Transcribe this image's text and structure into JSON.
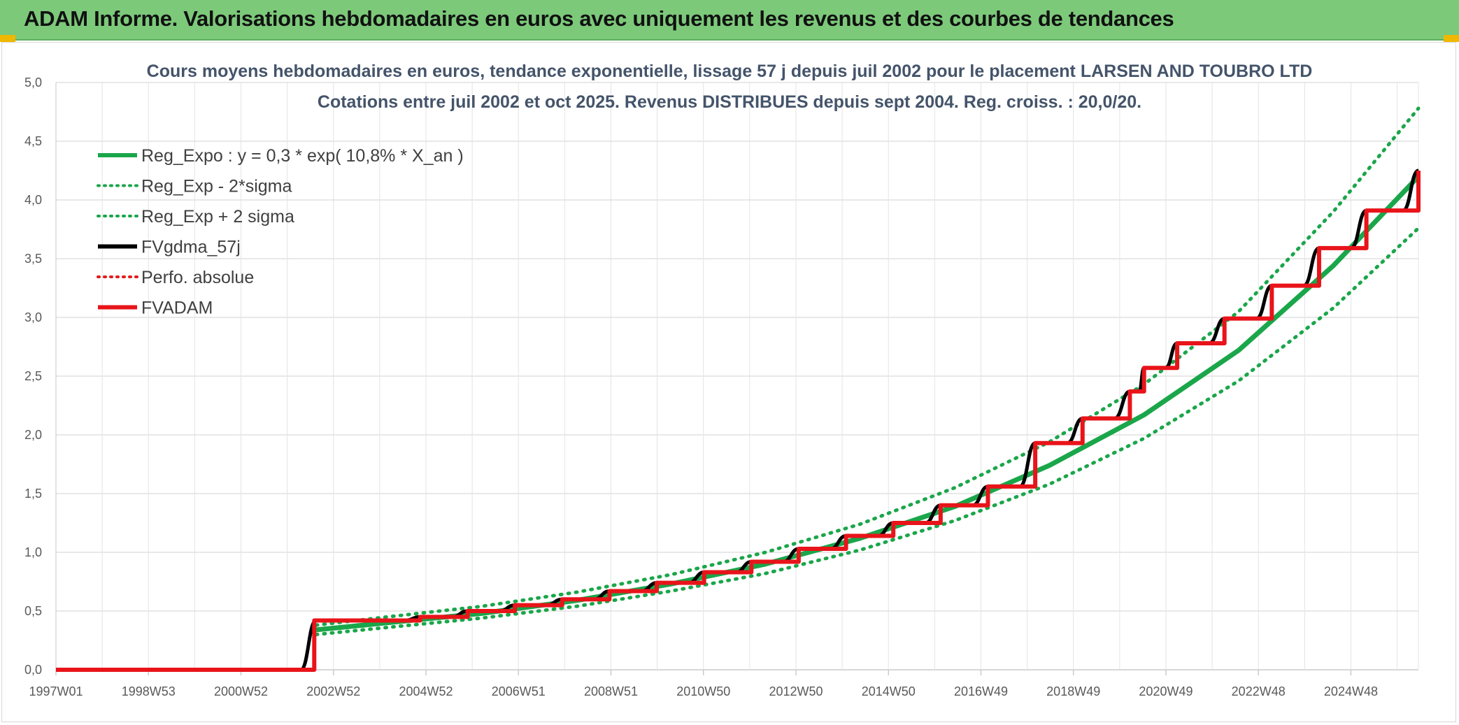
{
  "header": {
    "title": "ADAM Informe. Valorisations hebdomadaires en euros avec uniquement les revenus et des courbes de tendances"
  },
  "chart_data": {
    "type": "line",
    "title": "Cours moyens hebdomadaires en euros, tendance exponentielle, lissage 57 j depuis juil 2002 pour le placement LARSEN AND TOUBRO LTD",
    "subtitle": "Cotations entre juil 2002 et oct 2025. Revenus DISTRIBUES depuis sept 2004. Reg. croiss. : 20,0/20.",
    "xlabel": "",
    "ylabel": "",
    "x_tick_labels": [
      "1997W01",
      "1998W53",
      "2000W52",
      "2002W52",
      "2004W52",
      "2006W51",
      "2008W51",
      "2010W50",
      "2012W50",
      "2014W50",
      "2016W49",
      "2018W49",
      "2020W49",
      "2022W48",
      "2024W48"
    ],
    "xlim": [
      1997.0,
      2025.8
    ],
    "ylim": [
      0,
      5
    ],
    "y_tick_labels": [
      "0,0",
      "0,5",
      "1,0",
      "1,5",
      "2,0",
      "2,5",
      "3,0",
      "3,5",
      "4,0",
      "4,5",
      "5,0"
    ],
    "grid": true,
    "legend_position": "top-left",
    "colors": {
      "trend": "#1aa64a",
      "bands": "#1aa64a",
      "smooth": "#000000",
      "perf": "#e41a1c",
      "fvadam": "#e8141a"
    },
    "series": [
      {
        "name": "Reg_Expo : y = 0,3 * exp( 10,8% *  X_an )",
        "style": "solid-thick",
        "x": [
          2002.5,
          2004,
          2006,
          2008,
          2010,
          2012,
          2014,
          2016,
          2018,
          2020,
          2022,
          2024,
          2025.8
        ],
        "y": [
          0.34,
          0.4,
          0.48,
          0.59,
          0.73,
          0.9,
          1.12,
          1.39,
          1.74,
          2.17,
          2.72,
          3.44,
          4.2
        ]
      },
      {
        "name": "Reg_Exp - 2*sigma",
        "style": "dotted",
        "x": [
          2002.5,
          2004,
          2006,
          2008,
          2010,
          2012,
          2014,
          2016,
          2018,
          2020,
          2022,
          2024,
          2025.8
        ],
        "y": [
          0.3,
          0.36,
          0.44,
          0.54,
          0.67,
          0.82,
          1.02,
          1.27,
          1.58,
          1.97,
          2.46,
          3.08,
          3.76
        ]
      },
      {
        "name": "Reg_Exp + 2 sigma",
        "style": "dotted",
        "x": [
          2002.5,
          2004,
          2006,
          2008,
          2010,
          2012,
          2014,
          2016,
          2018,
          2020,
          2022,
          2024,
          2025.8
        ],
        "y": [
          0.38,
          0.45,
          0.54,
          0.66,
          0.81,
          1.0,
          1.24,
          1.55,
          1.94,
          2.43,
          3.05,
          3.9,
          4.78
        ]
      },
      {
        "name": "FVgdma_57j",
        "style": "solid",
        "x": [
          1997.0,
          2002.5,
          2004.7,
          2005.7,
          2006.7,
          2007.7,
          2008.7,
          2009.7,
          2010.7,
          2011.7,
          2012.7,
          2013.7,
          2014.7,
          2015.7,
          2016.7,
          2017.7,
          2018.7,
          2019.7,
          2020.0,
          2020.7,
          2021.7,
          2022.7,
          2023.7,
          2024.7,
          2025.8
        ],
        "y": [
          0.0,
          0.42,
          0.45,
          0.5,
          0.55,
          0.6,
          0.67,
          0.74,
          0.83,
          0.92,
          1.03,
          1.14,
          1.25,
          1.4,
          1.56,
          1.93,
          2.14,
          2.37,
          2.57,
          2.78,
          2.99,
          3.27,
          3.59,
          3.91,
          4.25
        ]
      },
      {
        "name": "Perfo. absolue",
        "style": "dotted",
        "x": [],
        "y": []
      },
      {
        "name": "FVADAM",
        "style": "step-thick",
        "x": [
          1997.0,
          2002.45,
          2002.46,
          2004.7,
          2005.7,
          2006.7,
          2007.7,
          2008.7,
          2009.7,
          2010.7,
          2011.7,
          2012.7,
          2013.7,
          2014.7,
          2015.7,
          2016.7,
          2017.7,
          2018.7,
          2019.7,
          2020.0,
          2020.7,
          2021.7,
          2022.7,
          2023.7,
          2024.7,
          2025.8
        ],
        "y": [
          0.0,
          0.0,
          0.42,
          0.45,
          0.5,
          0.55,
          0.6,
          0.67,
          0.74,
          0.83,
          0.92,
          1.03,
          1.14,
          1.25,
          1.4,
          1.56,
          1.93,
          2.14,
          2.37,
          2.57,
          2.78,
          2.99,
          3.27,
          3.59,
          3.91,
          4.25
        ]
      }
    ]
  }
}
